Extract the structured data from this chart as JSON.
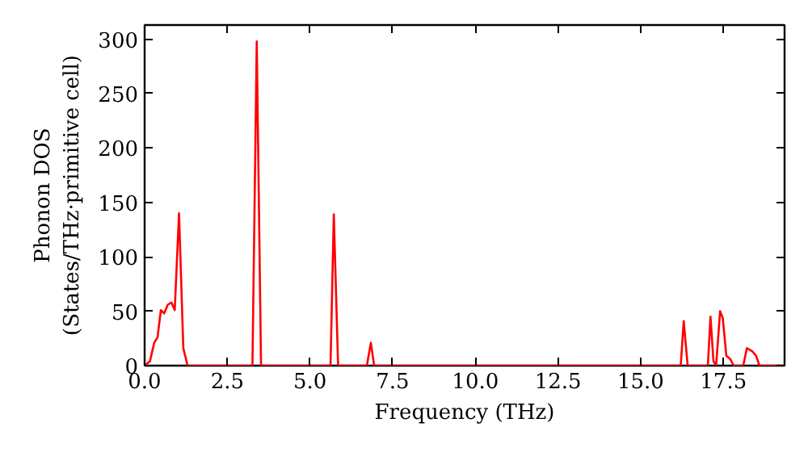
{
  "chart_data": {
    "type": "line",
    "xlabel": "Frequency (THz)",
    "ylabel": "Phonon DOS\n(States/THz·primitive cell)",
    "x": [
      0,
      0.16,
      0.29,
      0.39,
      0.49,
      0.59,
      0.7,
      0.81,
      0.91,
      1.04,
      1.17,
      1.3,
      3.26,
      3.39,
      3.52,
      5.62,
      5.72,
      5.85,
      6.72,
      6.84,
      6.94,
      16.21,
      16.3,
      16.42,
      17.03,
      17.11,
      17.2,
      17.28,
      17.4,
      17.48,
      17.59,
      17.71,
      17.81,
      18.1,
      18.21,
      18.38,
      18.49,
      18.59,
      19.35
    ],
    "series": [
      {
        "color": "#ff0000",
        "values": [
          0,
          4,
          21,
          26,
          51,
          48,
          56,
          58,
          51,
          140,
          16,
          0,
          0,
          298,
          0,
          0,
          139,
          0,
          0,
          21,
          0,
          0,
          41,
          0,
          0,
          45,
          4,
          0,
          50,
          44,
          9,
          6,
          0,
          0,
          16,
          13,
          9,
          0,
          0
        ]
      }
    ],
    "xlim": [
      0,
      19.35
    ],
    "ylim": [
      0,
      313
    ],
    "xticks": [
      {
        "value": 0,
        "label": "0.0"
      },
      {
        "value": 2.5,
        "label": "2.5"
      },
      {
        "value": 5,
        "label": "5.0"
      },
      {
        "value": 7.5,
        "label": "7.5"
      },
      {
        "value": 10,
        "label": "10.0"
      },
      {
        "value": 12.5,
        "label": "12.5"
      },
      {
        "value": 15,
        "label": "15.0"
      },
      {
        "value": 17.5,
        "label": "17.5"
      }
    ],
    "yticks": [
      0,
      50,
      100,
      150,
      200,
      250,
      300
    ],
    "grid": false,
    "marker": "none",
    "line_style": "solid"
  }
}
